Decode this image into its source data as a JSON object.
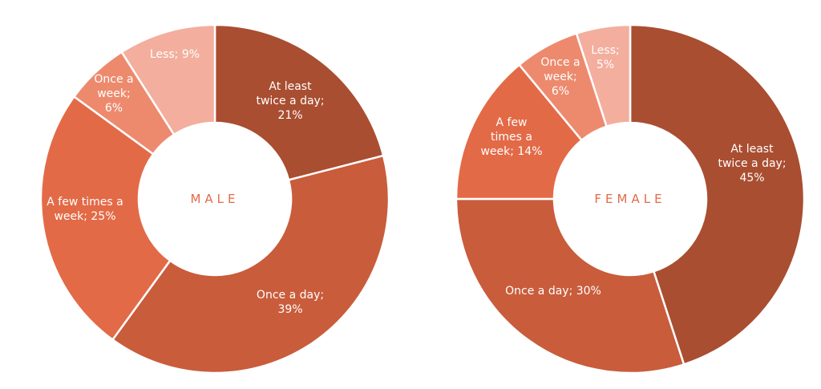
{
  "chart_data": [
    {
      "type": "pie",
      "title": "MALE",
      "slices": [
        {
          "label": "At least twice a day; 21%",
          "value": 21,
          "color": "#A94E31"
        },
        {
          "label": "Once a day; 39%",
          "value": 39,
          "color": "#C95C3B"
        },
        {
          "label": "A few times a week; 25%",
          "value": 25,
          "color": "#E36A47"
        },
        {
          "label": "Once a week; 6%",
          "value": 6,
          "color": "#ED8A6E"
        },
        {
          "label": "Less; 9%",
          "value": 9,
          "color": "#F3AE9D"
        }
      ]
    },
    {
      "type": "pie",
      "title": "FEMALE",
      "slices": [
        {
          "label": "At least twice a day; 45%",
          "value": 45,
          "color": "#A94E31"
        },
        {
          "label": "Once a day; 30%",
          "value": 30,
          "color": "#C95C3B"
        },
        {
          "label": "A few times a week; 14%",
          "value": 14,
          "color": "#E36A47"
        },
        {
          "label": "Once a week; 6%",
          "value": 6,
          "color": "#ED8A6E"
        },
        {
          "label": "Less; 5%",
          "value": 5,
          "color": "#F3AE9D"
        }
      ]
    }
  ],
  "title_color": "#E36A47"
}
